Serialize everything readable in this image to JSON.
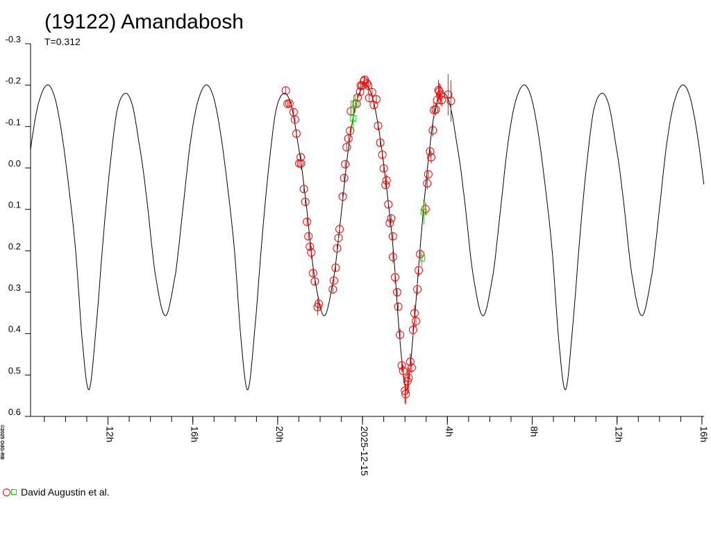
{
  "chart_data": {
    "type": "scatter",
    "title": "(19122) Amandabosh",
    "subtitle": "T=0.312",
    "copyright": "©2025 OdG-RB",
    "xlabel": "",
    "ylabel": "",
    "xlim": [
      "2025-12-14 08:21",
      "2025-12-15 16:06"
    ],
    "ylim": [
      -0.3,
      0.6
    ],
    "y_inverted": true,
    "grid": false,
    "y_ticks": [
      {
        "value": -0.3,
        "label": "-0.3"
      },
      {
        "value": -0.2,
        "label": "-0.2"
      },
      {
        "value": -0.1,
        "label": "-0.1"
      },
      {
        "value": 0.0,
        "label": "0.0"
      },
      {
        "value": 0.1,
        "label": "0.1"
      },
      {
        "value": 0.2,
        "label": "0.2"
      },
      {
        "value": 0.3,
        "label": "0.3"
      },
      {
        "value": 0.4,
        "label": "0.4"
      },
      {
        "value": 0.5,
        "label": "0.5"
      },
      {
        "value": 0.6,
        "label": "0.6"
      }
    ],
    "x_minor_ticks_from": "2025-12-14 09:00",
    "x_minor_ticks_to": "2025-12-15 16:00",
    "x_major_ticks": [
      {
        "time": "2025-12-14 12:00",
        "label": "12h"
      },
      {
        "time": "2025-12-14 16:00",
        "label": "16h"
      },
      {
        "time": "2025-12-14 20:00",
        "label": "20h"
      },
      {
        "time": "2025-12-15 00:00",
        "label": "2025-12-15"
      },
      {
        "time": "2025-12-15 04:00",
        "label": "4h"
      },
      {
        "time": "2025-12-15 08:00",
        "label": "8h"
      },
      {
        "time": "2025-12-15 12:00",
        "label": "12h"
      },
      {
        "time": "2025-12-15 16:00",
        "label": "16h"
      }
    ],
    "model_curve": {
      "period_days": 0.312,
      "epoch_deep_minimum": "2025-12-14 18:36",
      "color": "#000000",
      "phase_magnitude": [
        [
          0.0,
          0.535
        ],
        [
          0.045,
          0.38
        ],
        [
          0.09,
          0.165
        ],
        [
          0.13,
          0.0
        ],
        [
          0.175,
          -0.137
        ],
        [
          0.225,
          -0.18
        ],
        [
          0.27,
          -0.155
        ],
        [
          0.31,
          -0.07
        ],
        [
          0.355,
          0.052
        ],
        [
          0.415,
          0.253
        ],
        [
          0.48,
          0.357
        ],
        [
          0.545,
          0.253
        ],
        [
          0.59,
          0.1
        ],
        [
          0.635,
          -0.055
        ],
        [
          0.68,
          -0.155
        ],
        [
          0.733,
          -0.2
        ],
        [
          0.78,
          -0.175
        ],
        [
          0.825,
          -0.09
        ],
        [
          0.87,
          0.04
        ],
        [
          0.915,
          0.2
        ],
        [
          0.96,
          0.43
        ]
      ]
    },
    "legend": {
      "label": "David Augustin et al.",
      "placement": "bottom-left"
    },
    "series": [
      {
        "marker": "circle",
        "color": "#ff0000",
        "points": [
          [
            "2025-12-14 20:23",
            -0.187,
            0.01
          ],
          [
            "2025-12-14 20:28",
            -0.155,
            0.01
          ],
          [
            "2025-12-14 20:33",
            -0.156,
            0.01
          ],
          [
            "2025-12-14 20:45",
            -0.135,
            0.01
          ],
          [
            "2025-12-14 20:49",
            -0.117,
            0.01
          ],
          [
            "2025-12-14 20:53",
            -0.083,
            0.01
          ],
          [
            "2025-12-14 21:01",
            -0.011,
            0.01
          ],
          [
            "2025-12-14 21:05",
            -0.026,
            0.01
          ],
          [
            "2025-12-14 21:06",
            -0.011,
            0.015
          ],
          [
            "2025-12-14 21:14",
            0.051,
            0.01
          ],
          [
            "2025-12-14 21:18",
            0.082,
            0.01
          ],
          [
            "2025-12-14 21:23",
            0.13,
            0.01
          ],
          [
            "2025-12-14 21:27",
            0.165,
            0.01
          ],
          [
            "2025-12-14 21:31",
            0.19,
            0.01
          ],
          [
            "2025-12-14 21:35",
            0.204,
            0.015
          ],
          [
            "2025-12-14 21:40",
            0.254,
            0.01
          ],
          [
            "2025-12-14 21:45",
            0.274,
            0.01
          ],
          [
            "2025-12-14 21:53",
            0.336,
            0.02
          ],
          [
            "2025-12-14 21:56",
            0.328,
            0.015
          ],
          [
            "2025-12-14 22:36",
            0.293,
            0.01
          ],
          [
            "2025-12-14 22:39",
            0.272,
            0.01
          ],
          [
            "2025-12-14 22:44",
            0.241,
            0.01
          ],
          [
            "2025-12-14 22:48",
            0.194,
            0.01
          ],
          [
            "2025-12-14 22:52",
            0.169,
            0.01
          ],
          [
            "2025-12-14 22:55",
            0.148,
            0.01
          ],
          [
            "2025-12-14 23:04",
            0.069,
            0.01
          ],
          [
            "2025-12-14 23:08",
            0.024,
            0.01
          ],
          [
            "2025-12-14 23:11",
            -0.009,
            0.01
          ],
          [
            "2025-12-14 23:15",
            -0.05,
            0.01
          ],
          [
            "2025-12-14 23:20",
            -0.071,
            0.01
          ],
          [
            "2025-12-14 23:25",
            -0.09,
            0.01
          ],
          [
            "2025-12-14 23:27",
            -0.137,
            0.01
          ],
          [
            "2025-12-14 23:43",
            -0.155,
            0.01
          ],
          [
            "2025-12-14 23:46",
            -0.17,
            0.01
          ],
          [
            "2025-12-14 23:53",
            -0.184,
            0.01
          ],
          [
            "2025-12-14 23:55",
            -0.199,
            0.01
          ],
          [
            "2025-12-14 23:59",
            -0.199,
            0.01
          ],
          [
            "2025-12-15 00:04",
            -0.21,
            0.01
          ],
          [
            "2025-12-15 00:06",
            -0.213,
            0.01
          ],
          [
            "2025-12-15 00:12",
            -0.204,
            0.01
          ],
          [
            "2025-12-15 00:16",
            -0.199,
            0.01
          ],
          [
            "2025-12-15 00:19",
            -0.169,
            0.01
          ],
          [
            "2025-12-15 00:27",
            -0.183,
            0.01
          ],
          [
            "2025-12-15 00:32",
            -0.152,
            0.01
          ],
          [
            "2025-12-15 00:39",
            -0.166,
            0.01
          ],
          [
            "2025-12-15 00:44",
            -0.102,
            0.01
          ],
          [
            "2025-12-15 00:50",
            -0.061,
            0.01
          ],
          [
            "2025-12-15 00:56",
            -0.032,
            0.01
          ],
          [
            "2025-12-15 01:00",
            0.001,
            0.01
          ],
          [
            "2025-12-15 01:05",
            0.041,
            0.01
          ],
          [
            "2025-12-15 01:08",
            0.03,
            0.015
          ],
          [
            "2025-12-15 01:13",
            0.088,
            0.01
          ],
          [
            "2025-12-15 01:17",
            0.133,
            0.01
          ],
          [
            "2025-12-15 01:21",
            0.122,
            0.01
          ],
          [
            "2025-12-15 01:26",
            0.165,
            0.01
          ],
          [
            "2025-12-15 01:26",
            0.215,
            0.015
          ],
          [
            "2025-12-15 01:32",
            0.264,
            0.015
          ],
          [
            "2025-12-15 01:38",
            0.3,
            0.01
          ],
          [
            "2025-12-15 01:41",
            0.335,
            0.01
          ],
          [
            "2025-12-15 01:46",
            0.403,
            0.015
          ],
          [
            "2025-12-15 01:51",
            0.477,
            0.015
          ],
          [
            "2025-12-15 01:55",
            0.49,
            0.015
          ],
          [
            "2025-12-15 02:00",
            0.538,
            0.03
          ],
          [
            "2025-12-15 02:02",
            0.546,
            0.025
          ],
          [
            "2025-12-15 02:07",
            0.515,
            0.03
          ],
          [
            "2025-12-15 02:10",
            0.507,
            0.025
          ],
          [
            "2025-12-15 02:15",
            0.468,
            0.02
          ],
          [
            "2025-12-15 02:19",
            0.482,
            0.015
          ],
          [
            "2025-12-15 02:23",
            0.391,
            0.015
          ],
          [
            "2025-12-15 02:27",
            0.351,
            0.02
          ],
          [
            "2025-12-15 02:31",
            0.37,
            0.015
          ],
          [
            "2025-12-15 02:35",
            0.293,
            0.015
          ],
          [
            "2025-12-15 02:39",
            0.247,
            0.015
          ],
          [
            "2025-12-15 02:43",
            0.208,
            0.015
          ],
          [
            "2025-12-15 02:58",
            0.099,
            0.015
          ],
          [
            "2025-12-15 03:03",
            0.037,
            0.015
          ],
          [
            "2025-12-15 03:06",
            0.015,
            0.01
          ],
          [
            "2025-12-15 03:11",
            -0.04,
            0.015
          ],
          [
            "2025-12-15 03:14",
            -0.026,
            0.015
          ],
          [
            "2025-12-15 03:19",
            -0.091,
            0.015
          ],
          [
            "2025-12-15 03:22",
            -0.14,
            0.02
          ],
          [
            "2025-12-15 03:27",
            -0.141,
            0.015
          ],
          [
            "2025-12-15 03:31",
            -0.164,
            0.02
          ],
          [
            "2025-12-15 03:35",
            -0.188,
            0.025
          ],
          [
            "2025-12-15 03:37",
            -0.185,
            0.02
          ],
          [
            "2025-12-15 03:40",
            -0.177,
            0.025
          ],
          [
            "2025-12-15 03:44",
            -0.164,
            0.015
          ],
          [
            "2025-12-15 04:02",
            -0.177,
            0.05
          ],
          [
            "2025-12-15 04:10",
            -0.162,
            0.05
          ]
        ]
      },
      {
        "marker": "square",
        "color": "#00dd00",
        "points": [
          [
            "2025-12-14 23:34",
            -0.12,
            0.03
          ],
          [
            "2025-12-14 23:35",
            -0.155,
            0.02
          ],
          [
            "2025-12-14 23:40",
            -0.156,
            0.02
          ],
          [
            "2025-12-15 02:48",
            0.218,
            0.02
          ],
          [
            "2025-12-15 02:53",
            0.106,
            0.03
          ]
        ]
      }
    ]
  }
}
